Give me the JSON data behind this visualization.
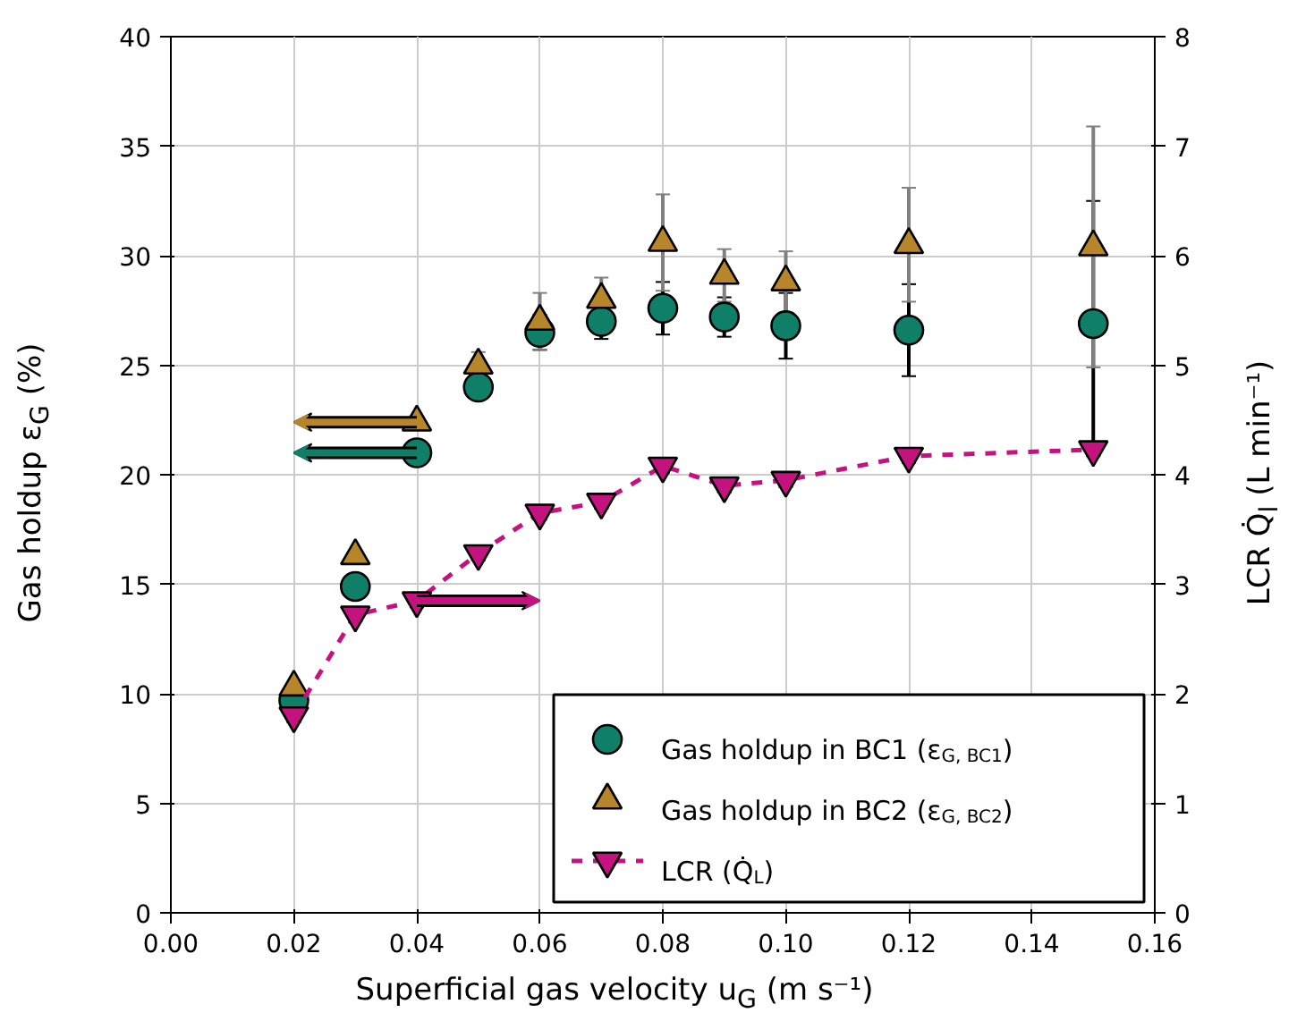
{
  "chart_data": {
    "type": "scatter",
    "x": [
      0.02,
      0.03,
      0.04,
      0.05,
      0.06,
      0.07,
      0.08,
      0.09,
      0.1,
      0.12,
      0.15
    ],
    "xlabel": "Superficial gas velocity u$_{G}$ (m s⁻¹)",
    "ylabel": "Gas holdup ε$_{G}$ (%)",
    "y2label": "LCR Q̇$_{l}$ (L min⁻¹)",
    "xlim": [
      0.0,
      0.16
    ],
    "xticks": [
      {
        "value": 0,
        "label": "0.00"
      },
      {
        "value": 0.02,
        "label": "0.02"
      },
      {
        "value": 0.04,
        "label": "0.04"
      },
      {
        "value": 0.06,
        "label": "0.06"
      },
      {
        "value": 0.08,
        "label": "0.08"
      },
      {
        "value": 0.1,
        "label": "0.10"
      },
      {
        "value": 0.12,
        "label": "0.12"
      },
      {
        "value": 0.14,
        "label": "0.14"
      },
      {
        "value": 0.16,
        "label": "0.16"
      }
    ],
    "ylim": [
      0,
      40
    ],
    "yticks": [
      0,
      5,
      10,
      15,
      20,
      25,
      30,
      35,
      40
    ],
    "y2lim": [
      0,
      8
    ],
    "y2ticks": [
      0,
      1,
      2,
      3,
      4,
      5,
      6,
      7,
      8
    ],
    "grid": true,
    "legend": "bottom right",
    "series": [
      {
        "name": "Gas holdup in BC1 (ε$_{G, BC1}$)",
        "color": "#0f7f67",
        "marker": "circle",
        "values": [
          9.7,
          14.9,
          21.0,
          24.0,
          26.5,
          27.0,
          27.6,
          27.2,
          26.8,
          26.6,
          26.9
        ],
        "errors": [
          null,
          null,
          null,
          null,
          0.8,
          0.8,
          1.2,
          0.9,
          1.5,
          2.1,
          5.6
        ]
      },
      {
        "name": "Gas holdup in BC2 (ε$_{G, BC2}$)",
        "color": "#b8862a",
        "marker": "triangle",
        "values": [
          10.3,
          16.3,
          22.4,
          25.0,
          27.0,
          28.0,
          30.6,
          29.1,
          28.8,
          30.5,
          30.4
        ],
        "errors": [
          null,
          null,
          null,
          0.6,
          1.3,
          1.0,
          2.2,
          1.2,
          1.4,
          2.6,
          5.5
        ]
      },
      {
        "name": "LCR (Q̇$_{L}$)",
        "type": "line",
        "axis": "y2",
        "color": "#c4127f",
        "marker": "triangle",
        "line_style": "dashed",
        "values": [
          1.8,
          2.72,
          2.85,
          3.28,
          3.65,
          3.75,
          4.08,
          3.9,
          3.95,
          4.17,
          4.23
        ],
        "errors": [
          0.06,
          0.06,
          0.06,
          0.06,
          0.06,
          0.06,
          0.06,
          0.06,
          0.06,
          0.06,
          0.06
        ]
      }
    ]
  }
}
